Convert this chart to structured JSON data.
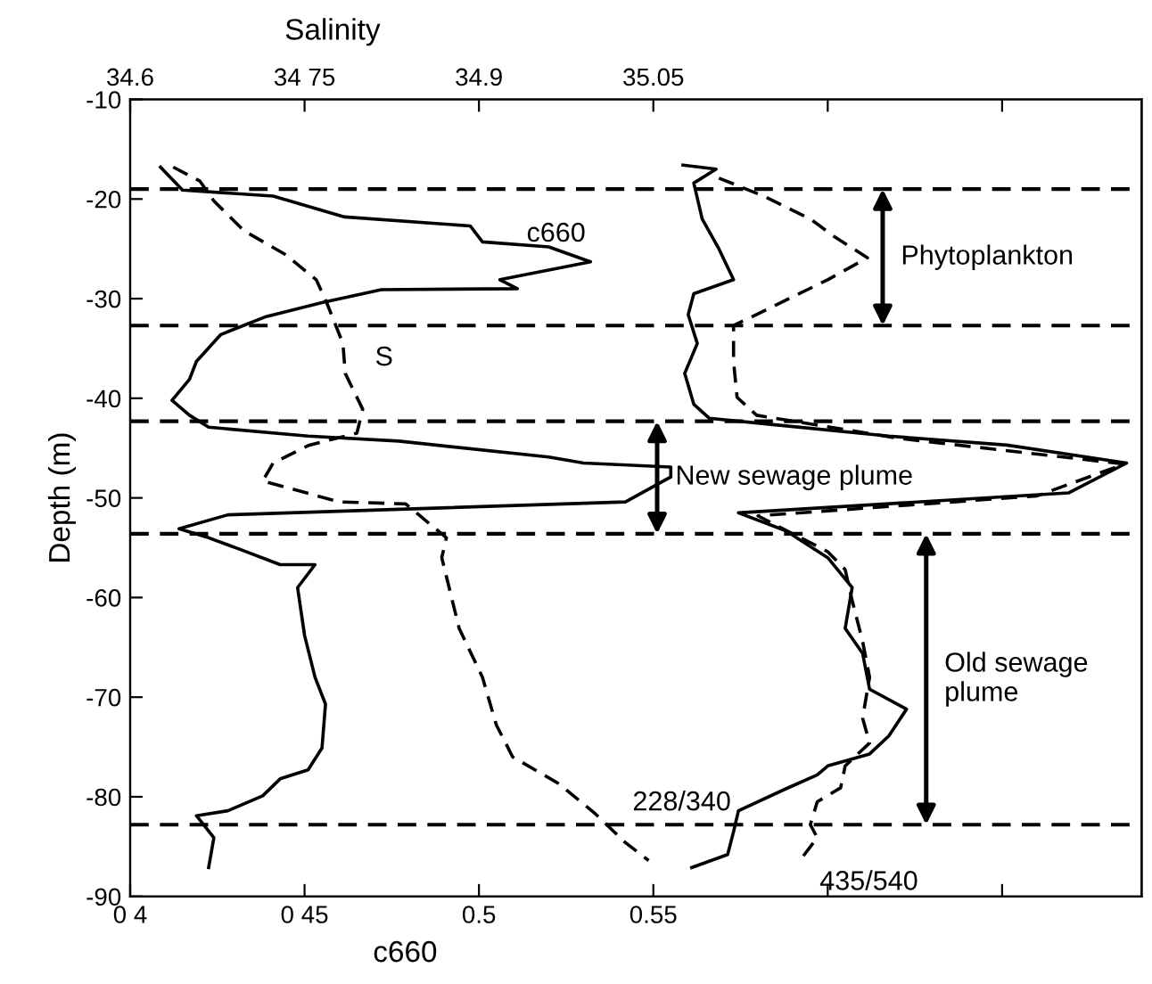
{
  "chart_data": {
    "type": "line",
    "xlabel": "c660",
    "x2label": "Salinity",
    "ylabel": "Depth (m)",
    "xlim": [
      0.4,
      0.69
    ],
    "xticks": [
      {
        "value": 0.4,
        "label": "0 4"
      },
      {
        "value": 0.45,
        "label": "0 45"
      },
      0.5,
      0.55,
      {
        "value": 0.6,
        "label": null
      },
      {
        "value": 0.65,
        "label": null
      }
    ],
    "x2lim": [
      34.6,
      35.47
    ],
    "x2ticks": [
      34.6,
      {
        "value": 34.75,
        "label": "34 75"
      },
      34.9,
      35.05,
      {
        "value": 35.2,
        "label": null
      },
      {
        "value": 35.35,
        "label": null
      }
    ],
    "ylim": [
      -90,
      -10
    ],
    "yticks": [
      -90,
      -80,
      -70,
      -60,
      -50,
      -40,
      -30,
      -20,
      -10
    ],
    "grid": false,
    "legend": false,
    "marker": "none",
    "series": [
      {
        "name": "c660",
        "color": "#000000",
        "line_style": "solid",
        "x": [
          0.4087,
          0.415,
          0.441,
          0.4615,
          0.4975,
          0.501,
          0.52,
          0.532,
          0.506,
          0.511,
          0.472,
          0.455,
          0.439,
          0.426,
          0.419,
          0.417,
          0.412,
          0.417,
          0.4225,
          0.451,
          0.477,
          0.52,
          0.53,
          0.555,
          0.555,
          0.542,
          0.428,
          0.414,
          0.4225,
          0.431,
          0.443,
          0.453,
          0.448,
          0.45,
          0.453,
          0.456,
          0.455,
          0.451,
          0.443,
          0.438,
          0.428,
          0.419,
          0.424,
          0.4225
        ],
        "values": [
          -16.8,
          -19.1,
          -19.7,
          -21.8,
          -22.7,
          -24.3,
          -24.8,
          -26.3,
          -28.1,
          -29.0,
          -29.1,
          -30.4,
          -31.8,
          -33.6,
          -36.3,
          -38.1,
          -40.2,
          -41.7,
          -42.9,
          -43.8,
          -44.3,
          -45.9,
          -46.5,
          -46.9,
          -47.9,
          -50.4,
          -51.7,
          -53.1,
          -54.0,
          -55.1,
          -56.7,
          -56.7,
          -59.0,
          -63.8,
          -68.0,
          -70.7,
          -75.1,
          -77.3,
          -78.2,
          -79.9,
          -81.4,
          -81.9,
          -84.1,
          -87.1
        ]
      },
      {
        "name": "S",
        "color": "#000000",
        "line_style": "dashed",
        "axis": "x2",
        "x": [
          34.637,
          34.66,
          34.672,
          34.698,
          34.734,
          34.76,
          34.769,
          34.783,
          34.785,
          34.8,
          34.795,
          34.754,
          34.723,
          34.714,
          34.78,
          34.837,
          34.872,
          34.868,
          34.883,
          34.903,
          34.915,
          34.929,
          34.969,
          35.0,
          35.026,
          35.046
        ],
        "values": [
          -16.8,
          -18.2,
          -20.2,
          -23.2,
          -25.6,
          -28.1,
          -30.4,
          -34.5,
          -37.5,
          -41.1,
          -43.5,
          -44.7,
          -46.5,
          -48.3,
          -50.4,
          -50.6,
          -54.0,
          -56.0,
          -63.1,
          -68.0,
          -72.8,
          -76.0,
          -78.7,
          -81.7,
          -84.6,
          -86.4
        ]
      },
      {
        "name": "228/340",
        "color": "#000000",
        "line_style": "solid",
        "x": [
          0.5585,
          0.568,
          0.5616,
          0.564,
          0.5688,
          0.573,
          0.5616,
          0.56,
          0.5626,
          0.559,
          0.5616,
          0.566,
          0.583,
          0.6175,
          0.6514,
          0.6857,
          0.669,
          0.5744,
          0.588,
          0.6,
          0.607,
          0.605,
          0.61,
          0.612,
          0.6226,
          0.6175,
          0.612,
          0.6,
          0.597,
          0.588,
          0.5744,
          0.573,
          0.5713,
          0.561
        ],
        "values": [
          -16.6,
          -17.0,
          -18.4,
          -22.0,
          -25.0,
          -28.1,
          -29.5,
          -31.6,
          -34.5,
          -37.5,
          -40.6,
          -42.0,
          -42.6,
          -43.8,
          -44.7,
          -46.5,
          -49.5,
          -51.5,
          -53.3,
          -56.0,
          -59.0,
          -63.1,
          -65.6,
          -69.2,
          -71.2,
          -73.9,
          -75.7,
          -76.9,
          -77.8,
          -79.2,
          -81.4,
          -83.5,
          -85.8,
          -87.1
        ]
      },
      {
        "name": "435/540",
        "color": "#000000",
        "line_style": "dashed",
        "x": [
          0.5688,
          0.5816,
          0.595,
          0.602,
          0.6114,
          0.6,
          0.5796,
          0.573,
          0.573,
          0.574,
          0.5796,
          0.62,
          0.685,
          0.66,
          0.58,
          0.6,
          0.605,
          0.607,
          0.61,
          0.612,
          0.61,
          0.612,
          0.605,
          0.6037,
          0.597,
          0.595,
          0.597,
          0.592
        ],
        "values": [
          -17.9,
          -19.7,
          -22.0,
          -23.8,
          -25.9,
          -28.1,
          -31.6,
          -32.7,
          -36.3,
          -39.9,
          -41.7,
          -44.0,
          -46.6,
          -49.8,
          -51.8,
          -55.4,
          -57.2,
          -60.3,
          -64.4,
          -68.0,
          -72.1,
          -74.6,
          -76.9,
          -79.1,
          -80.5,
          -82.8,
          -84.1,
          -86.4
        ]
      }
    ],
    "ref_lines": [
      {
        "axis": "y",
        "value": -19,
        "line_style": "dashed",
        "color": "#000000"
      },
      {
        "axis": "y",
        "value": -32.7,
        "line_style": "dashed",
        "color": "#000000"
      },
      {
        "axis": "y",
        "value": -42.3,
        "line_style": "dashed",
        "color": "#000000"
      },
      {
        "axis": "y",
        "value": -53.6,
        "line_style": "dashed",
        "color": "#000000"
      },
      {
        "axis": "y",
        "value": -82.8,
        "line_style": "dashed",
        "color": "#000000"
      }
    ],
    "annotations": [
      "Phytoplankton",
      "New sewage plume",
      "Old sewage\nplume"
    ]
  }
}
